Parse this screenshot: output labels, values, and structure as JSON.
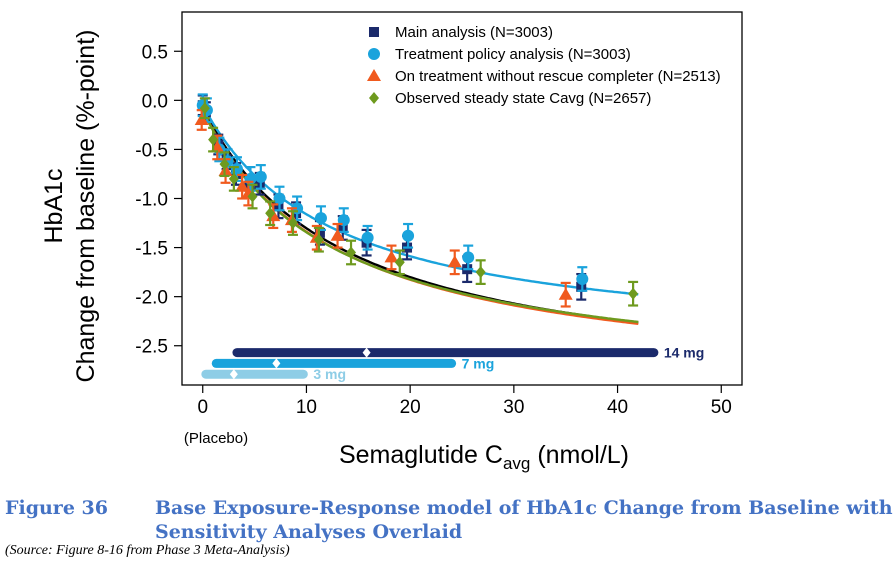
{
  "chart_data": {
    "type": "scatter",
    "ylabel_line1": "HbA1c",
    "ylabel_line2": "Change from baseline (%-point)",
    "xlabel_main": "Semaglutide C",
    "xlabel_sub": "avg",
    "xlabel_unit": " (nmol/L)",
    "x_extra_label": "(Placebo)",
    "xlim": [
      -2,
      52
    ],
    "ylim": [
      -2.9,
      0.9
    ],
    "xticks": [
      "0",
      "10",
      "20",
      "30",
      "40",
      "50"
    ],
    "xtick_values": [
      0,
      10,
      20,
      30,
      40,
      50
    ],
    "yticks": [
      "0.5",
      "0.0",
      "-0.5",
      "-1.0",
      "-1.5",
      "-2.0",
      "-2.5"
    ],
    "ytick_values": [
      0.5,
      0.0,
      -0.5,
      -1.0,
      -1.5,
      -2.0,
      -2.5
    ],
    "grid": false,
    "legend_position": "top-right",
    "colors": {
      "main": "#1b2a6b",
      "treatment": "#1aa3dc",
      "on_treatment": "#f05a1e",
      "steady": "#6e9a1e",
      "model_line": "#000000",
      "bar_14": "#1b2a6b",
      "bar_7": "#1aa3dc",
      "bar_3": "#8ecde6"
    },
    "series": [
      {
        "name": "Main analysis (N=3003)",
        "marker": "square",
        "color": "#1b2a6b",
        "points": [
          {
            "x": 0,
            "y": -0.05,
            "lo": -0.15,
            "hi": 0.05
          },
          {
            "x": 0.3,
            "y": -0.12,
            "lo": -0.22,
            "hi": -0.02
          },
          {
            "x": 1.5,
            "y": -0.45,
            "lo": -0.55,
            "hi": -0.35
          },
          {
            "x": 2.3,
            "y": -0.6,
            "lo": -0.7,
            "hi": -0.5
          },
          {
            "x": 3.2,
            "y": -0.75,
            "lo": -0.86,
            "hi": -0.64
          },
          {
            "x": 4.5,
            "y": -0.88,
            "lo": -0.99,
            "hi": -0.77
          },
          {
            "x": 5.5,
            "y": -0.85,
            "lo": -0.96,
            "hi": -0.74
          },
          {
            "x": 7.3,
            "y": -1.08,
            "lo": -1.2,
            "hi": -0.96
          },
          {
            "x": 9.0,
            "y": -1.15,
            "lo": -1.26,
            "hi": -1.04
          },
          {
            "x": 11.3,
            "y": -1.35,
            "lo": -1.47,
            "hi": -1.23
          },
          {
            "x": 13.5,
            "y": -1.3,
            "lo": -1.42,
            "hi": -1.18
          },
          {
            "x": 15.8,
            "y": -1.45,
            "lo": -1.58,
            "hi": -1.32
          },
          {
            "x": 19.7,
            "y": -1.5,
            "lo": -1.62,
            "hi": -1.38
          },
          {
            "x": 25.5,
            "y": -1.72,
            "lo": -1.85,
            "hi": -1.59
          },
          {
            "x": 36.5,
            "y": -1.9,
            "lo": -2.03,
            "hi": -1.77
          }
        ]
      },
      {
        "name": "Treatment policy analysis (N=3003)",
        "marker": "circle",
        "color": "#1aa3dc",
        "points": [
          {
            "x": 0,
            "y": -0.05,
            "lo": -0.16,
            "hi": 0.06
          },
          {
            "x": 0.4,
            "y": -0.1,
            "lo": -0.22,
            "hi": 0.02
          },
          {
            "x": 1.6,
            "y": -0.5,
            "lo": -0.62,
            "hi": -0.38
          },
          {
            "x": 2.4,
            "y": -0.62,
            "lo": -0.74,
            "hi": -0.5
          },
          {
            "x": 3.3,
            "y": -0.7,
            "lo": -0.82,
            "hi": -0.58
          },
          {
            "x": 4.6,
            "y": -0.8,
            "lo": -0.92,
            "hi": -0.68
          },
          {
            "x": 5.6,
            "y": -0.78,
            "lo": -0.9,
            "hi": -0.66
          },
          {
            "x": 7.4,
            "y": -1.0,
            "lo": -1.12,
            "hi": -0.88
          },
          {
            "x": 9.1,
            "y": -1.1,
            "lo": -1.22,
            "hi": -0.98
          },
          {
            "x": 11.4,
            "y": -1.2,
            "lo": -1.32,
            "hi": -1.08
          },
          {
            "x": 13.6,
            "y": -1.22,
            "lo": -1.34,
            "hi": -1.1
          },
          {
            "x": 15.9,
            "y": -1.4,
            "lo": -1.52,
            "hi": -1.28
          },
          {
            "x": 19.8,
            "y": -1.38,
            "lo": -1.5,
            "hi": -1.26
          },
          {
            "x": 25.6,
            "y": -1.6,
            "lo": -1.72,
            "hi": -1.48
          },
          {
            "x": 36.6,
            "y": -1.82,
            "lo": -1.94,
            "hi": -1.7
          }
        ]
      },
      {
        "name": "On treatment without rescue completer (N=2513)",
        "marker": "triangle",
        "color": "#f05a1e",
        "points": [
          {
            "x": -0.1,
            "y": -0.2,
            "lo": -0.3,
            "hi": -0.1
          },
          {
            "x": 1.4,
            "y": -0.48,
            "lo": -0.6,
            "hi": -0.36
          },
          {
            "x": 2.2,
            "y": -0.72,
            "lo": -0.84,
            "hi": -0.6
          },
          {
            "x": 3.8,
            "y": -0.88,
            "lo": -1.0,
            "hi": -0.76
          },
          {
            "x": 4.4,
            "y": -0.95,
            "lo": -1.07,
            "hi": -0.83
          },
          {
            "x": 6.8,
            "y": -1.18,
            "lo": -1.3,
            "hi": -1.06
          },
          {
            "x": 8.6,
            "y": -1.22,
            "lo": -1.34,
            "hi": -1.1
          },
          {
            "x": 11.0,
            "y": -1.4,
            "lo": -1.52,
            "hi": -1.28
          },
          {
            "x": 13.0,
            "y": -1.38,
            "lo": -1.5,
            "hi": -1.26
          },
          {
            "x": 18.2,
            "y": -1.6,
            "lo": -1.72,
            "hi": -1.48
          },
          {
            "x": 24.3,
            "y": -1.65,
            "lo": -1.77,
            "hi": -1.53
          },
          {
            "x": 35.0,
            "y": -1.98,
            "lo": -2.1,
            "hi": -1.86
          }
        ]
      },
      {
        "name": "Observed steady state Cavg (N=2657)",
        "marker": "diamond",
        "color": "#6e9a1e",
        "points": [
          {
            "x": 0.2,
            "y": -0.08,
            "lo": -0.18,
            "hi": 0.02
          },
          {
            "x": 1.0,
            "y": -0.4,
            "lo": -0.52,
            "hi": -0.28
          },
          {
            "x": 2.1,
            "y": -0.65,
            "lo": -0.77,
            "hi": -0.53
          },
          {
            "x": 3.0,
            "y": -0.8,
            "lo": -0.92,
            "hi": -0.68
          },
          {
            "x": 4.8,
            "y": -0.98,
            "lo": -1.1,
            "hi": -0.86
          },
          {
            "x": 6.5,
            "y": -1.15,
            "lo": -1.27,
            "hi": -1.03
          },
          {
            "x": 8.7,
            "y": -1.25,
            "lo": -1.37,
            "hi": -1.13
          },
          {
            "x": 11.2,
            "y": -1.42,
            "lo": -1.54,
            "hi": -1.3
          },
          {
            "x": 14.3,
            "y": -1.55,
            "lo": -1.67,
            "hi": -1.43
          },
          {
            "x": 19.0,
            "y": -1.65,
            "lo": -1.77,
            "hi": -1.53
          },
          {
            "x": 26.8,
            "y": -1.75,
            "lo": -1.87,
            "hi": -1.63
          },
          {
            "x": 41.5,
            "y": -1.97,
            "lo": -2.09,
            "hi": -1.85
          }
        ]
      }
    ],
    "model_curves": [
      {
        "color": "#000000",
        "emax": -2.9,
        "ec50": 13.5,
        "e0": -0.07
      },
      {
        "color": "#1aa3dc",
        "emax": -2.5,
        "ec50": 12.5,
        "e0": -0.05
      },
      {
        "color": "#f05a1e",
        "emax": -2.85,
        "ec50": 13.0,
        "e0": -0.1
      },
      {
        "color": "#6e9a1e",
        "emax": -2.8,
        "ec50": 12.5,
        "e0": -0.1
      }
    ],
    "exposure_bars": [
      {
        "label": "14 mg",
        "y": -2.57,
        "x_start": 3.3,
        "x_end": 43.5,
        "median": 15.8,
        "color": "#1b2a6b"
      },
      {
        "label": "7 mg",
        "y": -2.68,
        "x_start": 1.3,
        "x_end": 24.0,
        "median": 7.1,
        "color": "#1aa3dc"
      },
      {
        "label": "3 mg",
        "y": -2.79,
        "x_start": 0.3,
        "x_end": 9.7,
        "median": 3.0,
        "color": "#8ecde6"
      }
    ]
  },
  "caption": {
    "number": "Figure 36",
    "title_line1": "Base Exposure-Response model of HbA1c Change from Baseline with",
    "title_line2": "Sensitivity Analyses Overlaid",
    "source": "(Source:   Figure 8-16 from Phase 3 Meta-Analysis)"
  }
}
